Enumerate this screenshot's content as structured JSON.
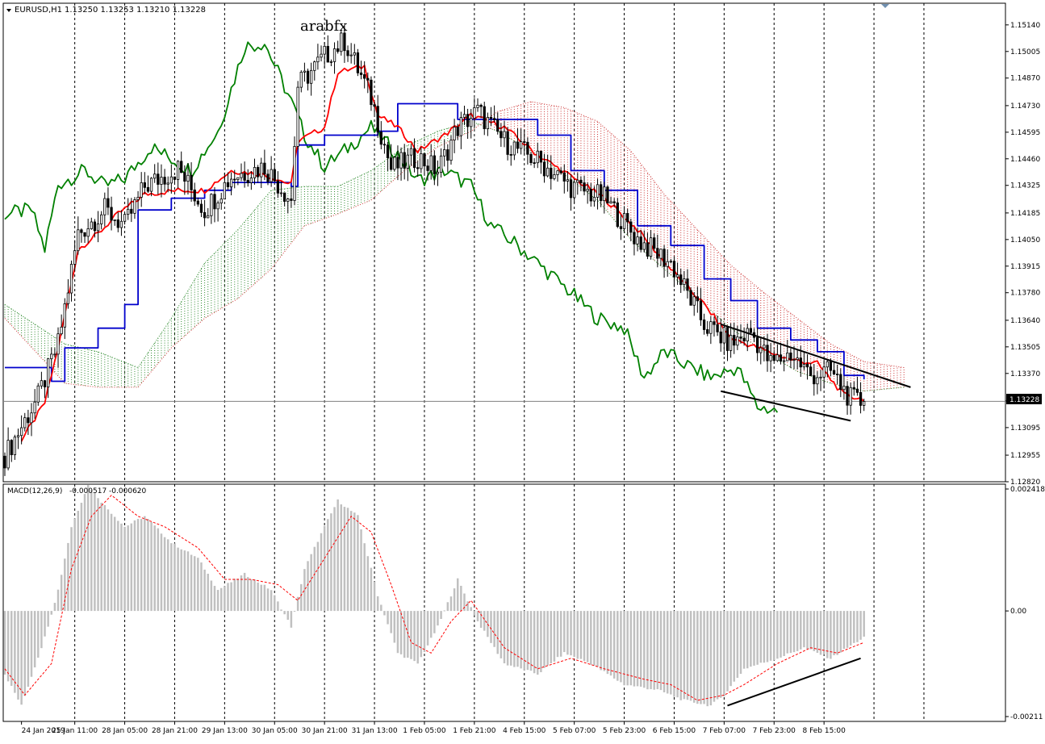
{
  "header": {
    "symbol": "EURUSD,H1",
    "ohlc": "1.13250 1.13253 1.13210 1.13228",
    "watermark": "arabfx"
  },
  "macd_header": {
    "label": "MACD(12,26,9)",
    "values": "-0.000517 -0.000620"
  },
  "colors": {
    "candle": "#000000",
    "tenkan": "#ff0000",
    "kijun": "#0000cc",
    "chikou": "#008000",
    "kumo_bull": "#2e8b2e",
    "kumo_bear": "#cc3333",
    "histogram": "#c0c0c0",
    "signal": "#ff0000",
    "grid": "#000000",
    "price_tag_bg": "#000000",
    "price_tag_fg": "#ffffff"
  },
  "chart_data": [
    {
      "type": "candlestick",
      "title": "EURUSD,H1",
      "indicators": [
        "Ichimoku Kinko Hyo (tenkan, kijun, chikou, kumo)",
        "trendlines"
      ],
      "ylim": [
        1.1282,
        1.1525
      ],
      "y_ticks": [
        "1.15140",
        "1.15005",
        "1.14870",
        "1.14730",
        "1.14595",
        "1.14460",
        "1.14325",
        "1.14185",
        "1.14050",
        "1.13915",
        "1.13780",
        "1.13640",
        "1.13505",
        "1.13370",
        "1.13230",
        "1.13095",
        "1.12955",
        "1.12820"
      ],
      "current_price": "1.13228",
      "anchors": [
        {
          "x": 0,
          "close": 1.1295
        },
        {
          "x": 10,
          "close": 1.1325
        },
        {
          "x": 16,
          "close": 1.1352
        },
        {
          "x": 22,
          "close": 1.1408
        },
        {
          "x": 30,
          "close": 1.142
        },
        {
          "x": 36,
          "close": 1.1412
        },
        {
          "x": 42,
          "close": 1.1432
        },
        {
          "x": 52,
          "close": 1.1441
        },
        {
          "x": 60,
          "close": 1.142
        },
        {
          "x": 68,
          "close": 1.1437
        },
        {
          "x": 78,
          "close": 1.1442
        },
        {
          "x": 86,
          "close": 1.1425
        },
        {
          "x": 88,
          "close": 1.1483
        },
        {
          "x": 96,
          "close": 1.1498
        },
        {
          "x": 102,
          "close": 1.1506
        },
        {
          "x": 110,
          "close": 1.1477
        },
        {
          "x": 116,
          "close": 1.1441
        },
        {
          "x": 124,
          "close": 1.1447
        },
        {
          "x": 130,
          "close": 1.144
        },
        {
          "x": 136,
          "close": 1.1462
        },
        {
          "x": 142,
          "close": 1.147
        },
        {
          "x": 150,
          "close": 1.1455
        },
        {
          "x": 160,
          "close": 1.1445
        },
        {
          "x": 170,
          "close": 1.1432
        },
        {
          "x": 180,
          "close": 1.1426
        },
        {
          "x": 190,
          "close": 1.1405
        },
        {
          "x": 200,
          "close": 1.1393
        },
        {
          "x": 210,
          "close": 1.1362
        },
        {
          "x": 218,
          "close": 1.1352
        },
        {
          "x": 224,
          "close": 1.1358
        },
        {
          "x": 230,
          "close": 1.1342
        },
        {
          "x": 236,
          "close": 1.1347
        },
        {
          "x": 242,
          "close": 1.1336
        },
        {
          "x": 248,
          "close": 1.1338
        },
        {
          "x": 254,
          "close": 1.1324
        },
        {
          "x": 258,
          "close": 1.1322
        }
      ],
      "tenkan": [
        {
          "x": 5,
          "y": 1.1303
        },
        {
          "x": 12,
          "y": 1.1322
        },
        {
          "x": 16,
          "y": 1.135
        },
        {
          "x": 22,
          "y": 1.14
        },
        {
          "x": 28,
          "y": 1.1408
        },
        {
          "x": 34,
          "y": 1.1418
        },
        {
          "x": 42,
          "y": 1.1428
        },
        {
          "x": 52,
          "y": 1.143
        },
        {
          "x": 60,
          "y": 1.143
        },
        {
          "x": 68,
          "y": 1.144
        },
        {
          "x": 78,
          "y": 1.1438
        },
        {
          "x": 86,
          "y": 1.1433
        },
        {
          "x": 88,
          "y": 1.1455
        },
        {
          "x": 96,
          "y": 1.1462
        },
        {
          "x": 100,
          "y": 1.149
        },
        {
          "x": 108,
          "y": 1.1493
        },
        {
          "x": 112,
          "y": 1.1468
        },
        {
          "x": 118,
          "y": 1.1462
        },
        {
          "x": 124,
          "y": 1.145
        },
        {
          "x": 132,
          "y": 1.1458
        },
        {
          "x": 140,
          "y": 1.1468
        },
        {
          "x": 150,
          "y": 1.1462
        },
        {
          "x": 160,
          "y": 1.1448
        },
        {
          "x": 170,
          "y": 1.1437
        },
        {
          "x": 180,
          "y": 1.1426
        },
        {
          "x": 190,
          "y": 1.141
        },
        {
          "x": 200,
          "y": 1.139
        },
        {
          "x": 210,
          "y": 1.1372
        },
        {
          "x": 218,
          "y": 1.1355
        },
        {
          "x": 226,
          "y": 1.135
        },
        {
          "x": 236,
          "y": 1.1344
        },
        {
          "x": 244,
          "y": 1.1342
        },
        {
          "x": 252,
          "y": 1.1326
        },
        {
          "x": 258,
          "y": 1.1324
        }
      ],
      "kijun": [
        {
          "x": 0,
          "y": 1.134
        },
        {
          "x": 14,
          "y": 1.1333
        },
        {
          "x": 18,
          "y": 1.135
        },
        {
          "x": 28,
          "y": 1.136
        },
        {
          "x": 36,
          "y": 1.1372
        },
        {
          "x": 40,
          "y": 1.142
        },
        {
          "x": 50,
          "y": 1.1426
        },
        {
          "x": 60,
          "y": 1.143
        },
        {
          "x": 68,
          "y": 1.1434
        },
        {
          "x": 86,
          "y": 1.1432
        },
        {
          "x": 88,
          "y": 1.1453
        },
        {
          "x": 96,
          "y": 1.1458
        },
        {
          "x": 112,
          "y": 1.146
        },
        {
          "x": 118,
          "y": 1.1474
        },
        {
          "x": 128,
          "y": 1.1474
        },
        {
          "x": 136,
          "y": 1.1466
        },
        {
          "x": 148,
          "y": 1.1466
        },
        {
          "x": 160,
          "y": 1.1458
        },
        {
          "x": 170,
          "y": 1.144
        },
        {
          "x": 180,
          "y": 1.143
        },
        {
          "x": 190,
          "y": 1.1412
        },
        {
          "x": 200,
          "y": 1.1402
        },
        {
          "x": 210,
          "y": 1.1385
        },
        {
          "x": 218,
          "y": 1.1374
        },
        {
          "x": 226,
          "y": 1.136
        },
        {
          "x": 236,
          "y": 1.1354
        },
        {
          "x": 244,
          "y": 1.1348
        },
        {
          "x": 252,
          "y": 1.1336
        },
        {
          "x": 258,
          "y": 1.1334
        }
      ],
      "chikou": [
        {
          "x": 0,
          "y": 1.1418
        },
        {
          "x": 8,
          "y": 1.142
        },
        {
          "x": 12,
          "y": 1.14
        },
        {
          "x": 16,
          "y": 1.1433
        },
        {
          "x": 24,
          "y": 1.144
        },
        {
          "x": 30,
          "y": 1.1432
        },
        {
          "x": 36,
          "y": 1.1436
        },
        {
          "x": 44,
          "y": 1.1452
        },
        {
          "x": 56,
          "y": 1.144
        },
        {
          "x": 64,
          "y": 1.146
        },
        {
          "x": 72,
          "y": 1.1503
        },
        {
          "x": 78,
          "y": 1.1505
        },
        {
          "x": 86,
          "y": 1.1475
        },
        {
          "x": 90,
          "y": 1.1458
        },
        {
          "x": 96,
          "y": 1.1442
        },
        {
          "x": 102,
          "y": 1.145
        },
        {
          "x": 110,
          "y": 1.1462
        },
        {
          "x": 118,
          "y": 1.1448
        },
        {
          "x": 124,
          "y": 1.1435
        },
        {
          "x": 132,
          "y": 1.144
        },
        {
          "x": 140,
          "y": 1.1432
        },
        {
          "x": 146,
          "y": 1.1412
        },
        {
          "x": 154,
          "y": 1.1402
        },
        {
          "x": 162,
          "y": 1.139
        },
        {
          "x": 170,
          "y": 1.1378
        },
        {
          "x": 178,
          "y": 1.1365
        },
        {
          "x": 186,
          "y": 1.136
        },
        {
          "x": 192,
          "y": 1.1335
        },
        {
          "x": 198,
          "y": 1.1348
        },
        {
          "x": 206,
          "y": 1.134
        },
        {
          "x": 212,
          "y": 1.1335
        },
        {
          "x": 220,
          "y": 1.134
        },
        {
          "x": 226,
          "y": 1.132
        },
        {
          "x": 232,
          "y": 1.1318
        }
      ],
      "kumo": [
        {
          "x": 0,
          "y1": 1.1372,
          "y2": 1.1365
        },
        {
          "x": 18,
          "y1": 1.1352,
          "y2": 1.1332
        },
        {
          "x": 28,
          "y1": 1.1348,
          "y2": 1.133
        },
        {
          "x": 40,
          "y1": 1.134,
          "y2": 1.133
        },
        {
          "x": 50,
          "y1": 1.1365,
          "y2": 1.135
        },
        {
          "x": 60,
          "y1": 1.1393,
          "y2": 1.1365
        },
        {
          "x": 70,
          "y1": 1.141,
          "y2": 1.1375
        },
        {
          "x": 80,
          "y1": 1.143,
          "y2": 1.139
        },
        {
          "x": 90,
          "y1": 1.1432,
          "y2": 1.1412
        },
        {
          "x": 100,
          "y1": 1.1432,
          "y2": 1.1418
        },
        {
          "x": 110,
          "y1": 1.144,
          "y2": 1.1425
        },
        {
          "x": 120,
          "y1": 1.1452,
          "y2": 1.144
        },
        {
          "x": 130,
          "y1": 1.146,
          "y2": 1.1452
        },
        {
          "x": 140,
          "y1": 1.1465,
          "y2": 1.146
        },
        {
          "x": 148,
          "y1": 1.146,
          "y2": 1.147
        },
        {
          "x": 158,
          "y1": 1.145,
          "y2": 1.1475
        },
        {
          "x": 168,
          "y1": 1.1438,
          "y2": 1.1472
        },
        {
          "x": 178,
          "y1": 1.1425,
          "y2": 1.1465
        },
        {
          "x": 188,
          "y1": 1.1405,
          "y2": 1.145
        },
        {
          "x": 198,
          "y1": 1.139,
          "y2": 1.1428
        },
        {
          "x": 208,
          "y1": 1.1375,
          "y2": 1.141
        },
        {
          "x": 218,
          "y1": 1.136,
          "y2": 1.1392
        },
        {
          "x": 228,
          "y1": 1.1348,
          "y2": 1.1378
        },
        {
          "x": 238,
          "y1": 1.1338,
          "y2": 1.1365
        },
        {
          "x": 248,
          "y1": 1.1332,
          "y2": 1.1352
        },
        {
          "x": 258,
          "y1": 1.1328,
          "y2": 1.1343
        },
        {
          "x": 270,
          "y1": 1.133,
          "y2": 1.134
        }
      ],
      "trendlines": [
        {
          "x1": 215,
          "y1": 1.1362,
          "x2": 272,
          "y2": 1.133
        },
        {
          "x1": 215,
          "y1": 1.1328,
          "x2": 254,
          "y2": 1.1313
        }
      ],
      "x_labels": [
        {
          "x": 5,
          "label": "24 Jan 2019"
        },
        {
          "x": 21,
          "label": "25 Jan 11:00"
        },
        {
          "x": 36,
          "label": "28 Jan 05:00"
        },
        {
          "x": 51,
          "label": "28 Jan 21:00"
        },
        {
          "x": 66,
          "label": "29 Jan 13:00"
        },
        {
          "x": 81,
          "label": "30 Jan 05:00"
        },
        {
          "x": 96,
          "label": "30 Jan 21:00"
        },
        {
          "x": 111,
          "label": "31 Jan 13:00"
        },
        {
          "x": 126,
          "label": "1 Feb 05:00"
        },
        {
          "x": 141,
          "label": "1 Feb 21:00"
        },
        {
          "x": 156,
          "label": "4 Feb 15:00"
        },
        {
          "x": 171,
          "label": "5 Feb 07:00"
        },
        {
          "x": 186,
          "label": "5 Feb 23:00"
        },
        {
          "x": 201,
          "label": "6 Feb 15:00"
        },
        {
          "x": 216,
          "label": "7 Feb 07:00"
        },
        {
          "x": 231,
          "label": "7 Feb 23:00"
        },
        {
          "x": 246,
          "label": "8 Feb 15:00"
        }
      ],
      "x_range": [
        0,
        300
      ]
    },
    {
      "type": "bar",
      "title": "MACD(12,26,9)",
      "ylim": [
        -0.0021,
        0.00241
      ],
      "y_ticks": [
        "0.002418",
        "0.00",
        "-0.00211"
      ],
      "macd_anchors": [
        {
          "x": 0,
          "y": -0.0012
        },
        {
          "x": 5,
          "y": -0.0018
        },
        {
          "x": 12,
          "y": -0.0005
        },
        {
          "x": 16,
          "y": 0.0004
        },
        {
          "x": 20,
          "y": 0.0016
        },
        {
          "x": 25,
          "y": 0.0024
        },
        {
          "x": 30,
          "y": 0.002
        },
        {
          "x": 36,
          "y": 0.0016
        },
        {
          "x": 42,
          "y": 0.0018
        },
        {
          "x": 50,
          "y": 0.0013
        },
        {
          "x": 58,
          "y": 0.001
        },
        {
          "x": 64,
          "y": 0.0004
        },
        {
          "x": 72,
          "y": 0.0007
        },
        {
          "x": 80,
          "y": 0.0004
        },
        {
          "x": 86,
          "y": -0.0003
        },
        {
          "x": 90,
          "y": 0.0008
        },
        {
          "x": 96,
          "y": 0.0016
        },
        {
          "x": 100,
          "y": 0.0021
        },
        {
          "x": 106,
          "y": 0.0018
        },
        {
          "x": 112,
          "y": 0.0003
        },
        {
          "x": 118,
          "y": -0.0008
        },
        {
          "x": 124,
          "y": -0.001
        },
        {
          "x": 130,
          "y": -0.0003
        },
        {
          "x": 136,
          "y": 0.0006
        },
        {
          "x": 142,
          "y": -0.0002
        },
        {
          "x": 150,
          "y": -0.001
        },
        {
          "x": 160,
          "y": -0.0012
        },
        {
          "x": 168,
          "y": -0.0008
        },
        {
          "x": 176,
          "y": -0.001
        },
        {
          "x": 186,
          "y": -0.0014
        },
        {
          "x": 196,
          "y": -0.0015
        },
        {
          "x": 204,
          "y": -0.0017
        },
        {
          "x": 212,
          "y": -0.0018
        },
        {
          "x": 216,
          "y": -0.0016
        },
        {
          "x": 222,
          "y": -0.0011
        },
        {
          "x": 232,
          "y": -0.0009
        },
        {
          "x": 240,
          "y": -0.0007
        },
        {
          "x": 248,
          "y": -0.0009
        },
        {
          "x": 258,
          "y": -0.0005
        }
      ],
      "signal_anchors": [
        {
          "x": 0,
          "y": -0.0011
        },
        {
          "x": 6,
          "y": -0.0016
        },
        {
          "x": 14,
          "y": -0.001
        },
        {
          "x": 20,
          "y": 0.0008
        },
        {
          "x": 26,
          "y": 0.0018
        },
        {
          "x": 32,
          "y": 0.0022
        },
        {
          "x": 40,
          "y": 0.0018
        },
        {
          "x": 48,
          "y": 0.0016
        },
        {
          "x": 58,
          "y": 0.0012
        },
        {
          "x": 66,
          "y": 0.0006
        },
        {
          "x": 74,
          "y": 0.0006
        },
        {
          "x": 82,
          "y": 0.0005
        },
        {
          "x": 88,
          "y": 0.0002
        },
        {
          "x": 96,
          "y": 0.001
        },
        {
          "x": 104,
          "y": 0.0018
        },
        {
          "x": 110,
          "y": 0.0015
        },
        {
          "x": 116,
          "y": 0.0005
        },
        {
          "x": 122,
          "y": -0.0006
        },
        {
          "x": 128,
          "y": -0.0008
        },
        {
          "x": 134,
          "y": -0.0002
        },
        {
          "x": 140,
          "y": 0.0002
        },
        {
          "x": 150,
          "y": -0.0007
        },
        {
          "x": 160,
          "y": -0.0011
        },
        {
          "x": 170,
          "y": -0.0009
        },
        {
          "x": 180,
          "y": -0.0011
        },
        {
          "x": 192,
          "y": -0.0013
        },
        {
          "x": 200,
          "y": -0.0014
        },
        {
          "x": 208,
          "y": -0.0017
        },
        {
          "x": 216,
          "y": -0.0016
        },
        {
          "x": 222,
          "y": -0.0014
        },
        {
          "x": 232,
          "y": -0.001
        },
        {
          "x": 242,
          "y": -0.0007
        },
        {
          "x": 250,
          "y": -0.0008
        },
        {
          "x": 258,
          "y": -0.0006
        }
      ],
      "trendline": {
        "x1": 217,
        "y1": -0.0018,
        "x2": 257,
        "y2": -0.0009
      }
    }
  ]
}
